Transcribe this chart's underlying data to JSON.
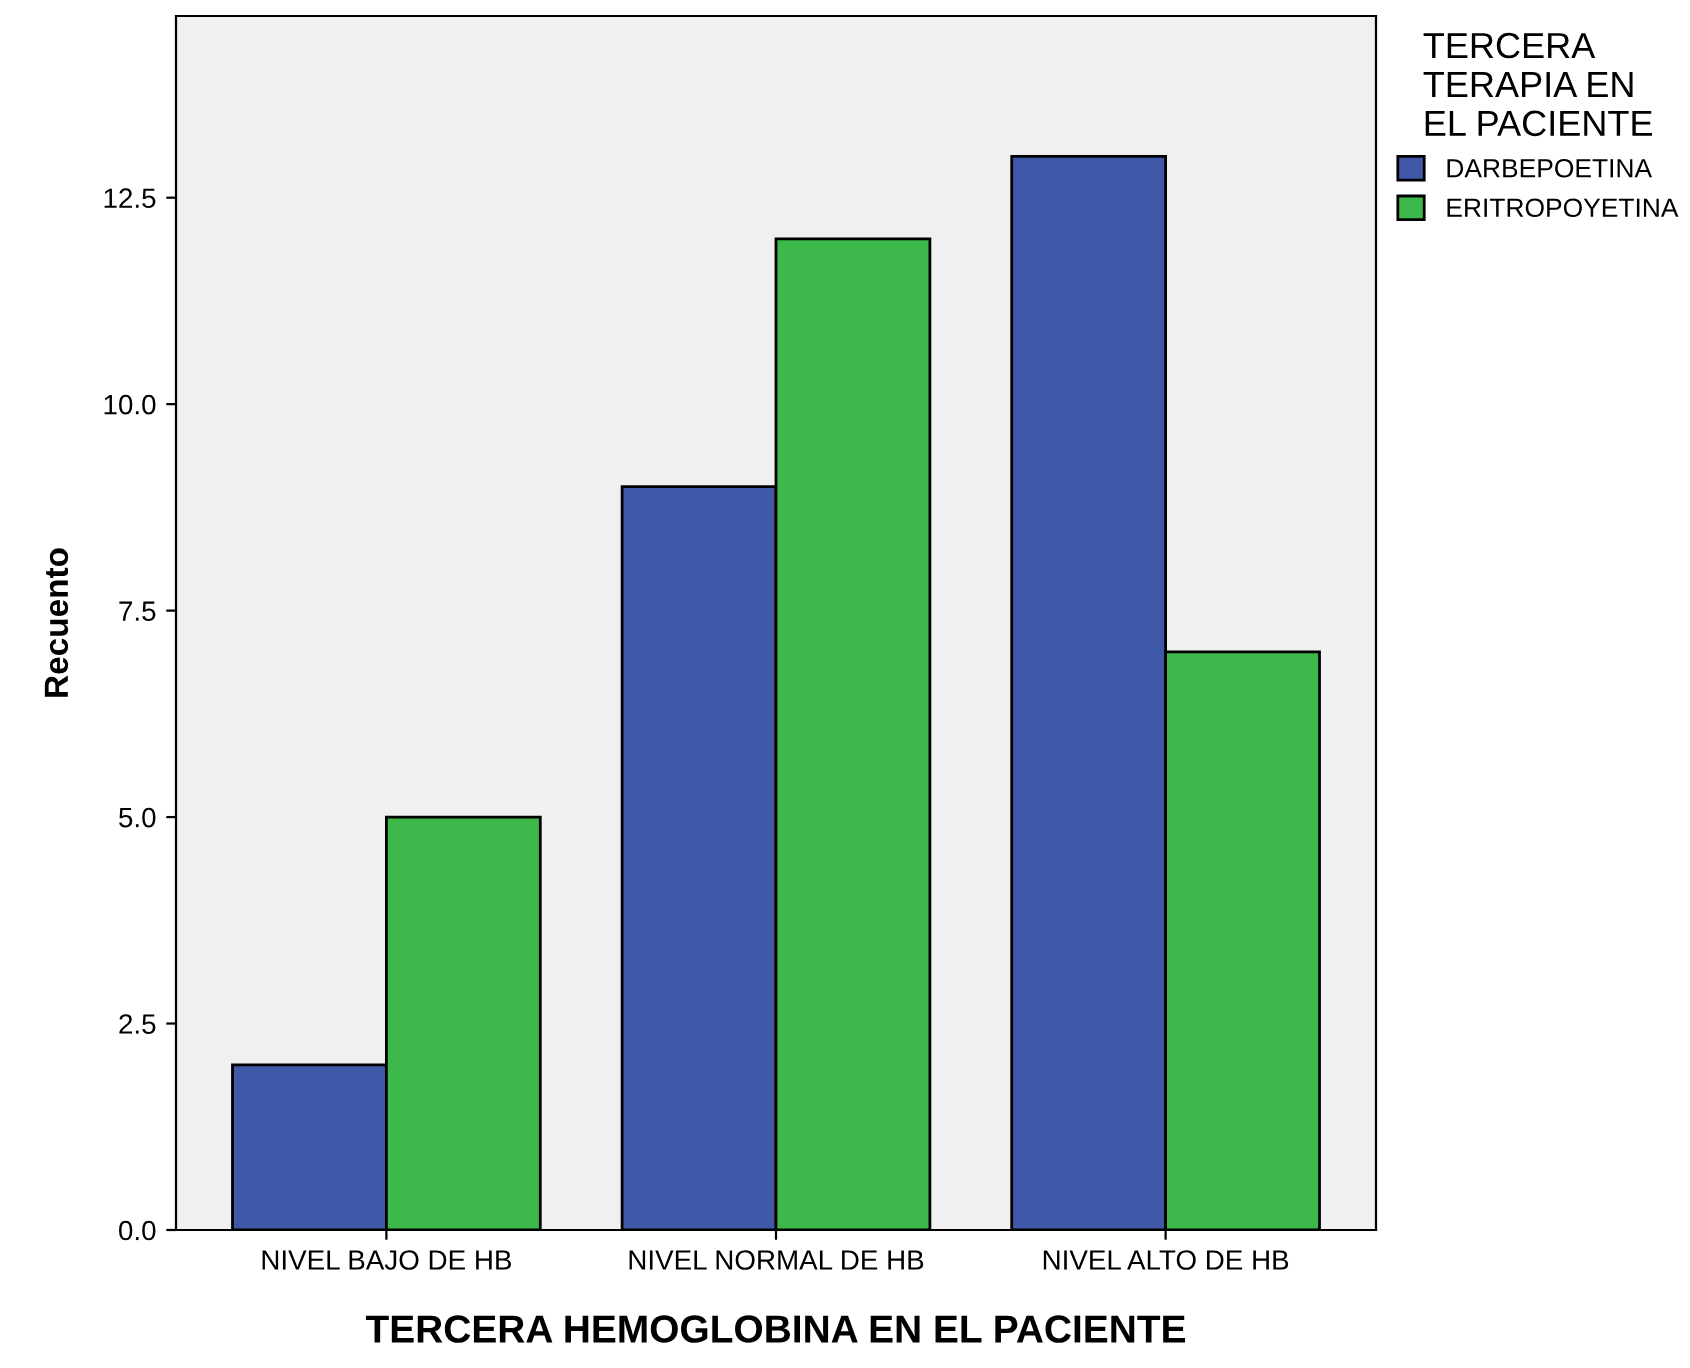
{
  "chart_data": {
    "type": "bar",
    "xlabel": "TERCERA HEMOGLOBINA EN EL PACIENTE",
    "ylabel": "Recuento",
    "categories": [
      "NIVEL BAJO DE HB",
      "NIVEL NORMAL DE HB",
      "NIVEL ALTO DE HB"
    ],
    "series": [
      {
        "name": "DARBEPOETINA",
        "color": "#3f58a8",
        "values": [
          2,
          9,
          13
        ]
      },
      {
        "name": "ERITROPOYETINA",
        "color": "#3cb94a",
        "values": [
          5,
          12,
          7
        ]
      }
    ],
    "legend_title": "TERCERA\nTERAPIA EN\nEL PACIENTE",
    "ylim": [
      0,
      14.7
    ],
    "yticks": [
      {
        "value": 0,
        "label": "0.0"
      },
      {
        "value": 2.5,
        "label": "2.5"
      },
      {
        "value": 5,
        "label": "5.0"
      },
      {
        "value": 7.5,
        "label": "7.5"
      },
      {
        "value": 10,
        "label": "10.0"
      },
      {
        "value": 12.5,
        "label": "12.5"
      }
    ],
    "grid": false,
    "legend": "top right"
  }
}
